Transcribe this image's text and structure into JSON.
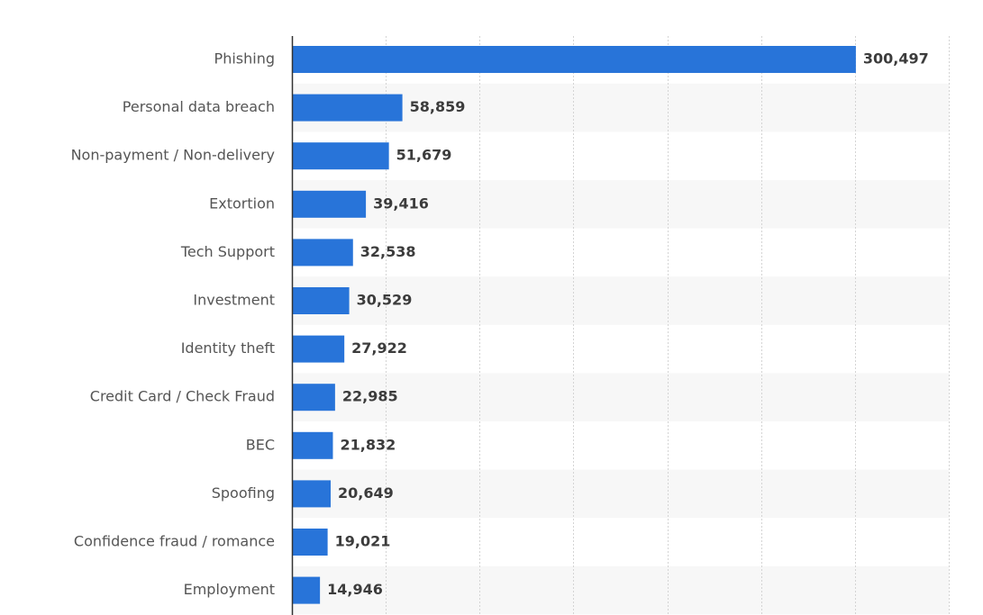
{
  "chart_data": {
    "type": "bar",
    "orientation": "horizontal",
    "categories": [
      "Phishing",
      "Personal data breach",
      "Non-payment / Non-delivery",
      "Extortion",
      "Tech Support",
      "Investment",
      "Identity theft",
      "Credit Card / Check Fraud",
      "BEC",
      "Spoofing",
      "Confidence fraud / romance",
      "Employment"
    ],
    "values": [
      300497,
      58859,
      51679,
      39416,
      32538,
      30529,
      27922,
      22985,
      21832,
      20649,
      19021,
      14946
    ],
    "value_labels": [
      "300,497",
      "58,859",
      "51,679",
      "39,416",
      "32,538",
      "30,529",
      "27,922",
      "22,985",
      "21,832",
      "20,649",
      "19,021",
      "14,946"
    ],
    "title": "",
    "xlabel": "",
    "ylabel": "",
    "xlim": [
      0,
      350000
    ],
    "grid": true,
    "bar_color": "#2874d9",
    "stripe_color": "#f7f7f7"
  }
}
